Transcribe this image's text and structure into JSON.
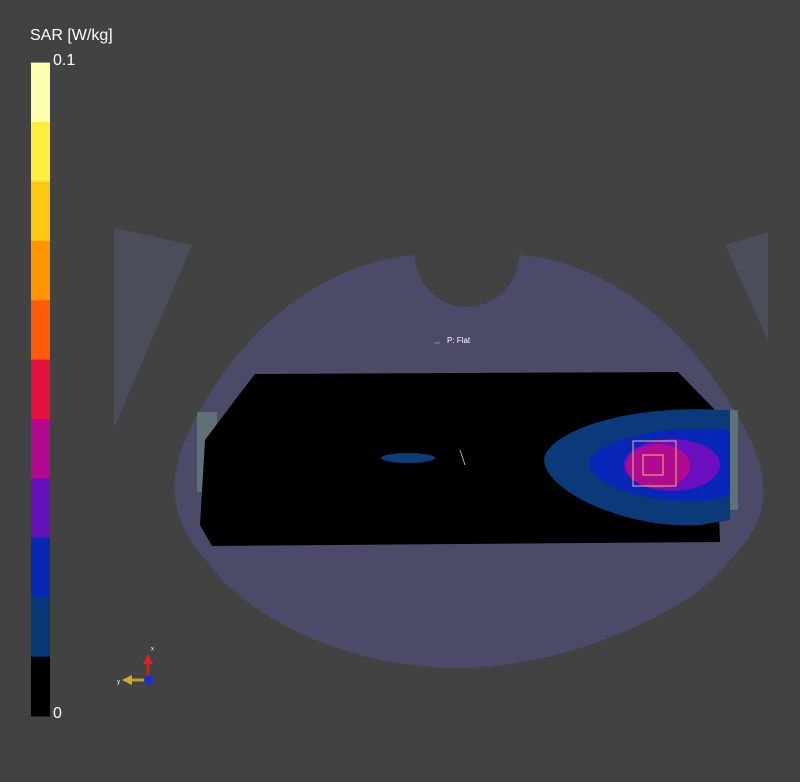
{
  "colorbar": {
    "title": "SAR [W/kg]",
    "max_label": "0.1",
    "min_label": "0",
    "colors": [
      "#ffffff",
      "#ffffb0",
      "#ffee40",
      "#ffc810",
      "#ff9600",
      "#ff5a08",
      "#e41040",
      "#b0088e",
      "#6410b8",
      "#0828b4",
      "#083878",
      "#000000"
    ]
  },
  "scene": {
    "phantom_label": "P: Flat",
    "axis_x": "x",
    "axis_y": "y"
  }
}
